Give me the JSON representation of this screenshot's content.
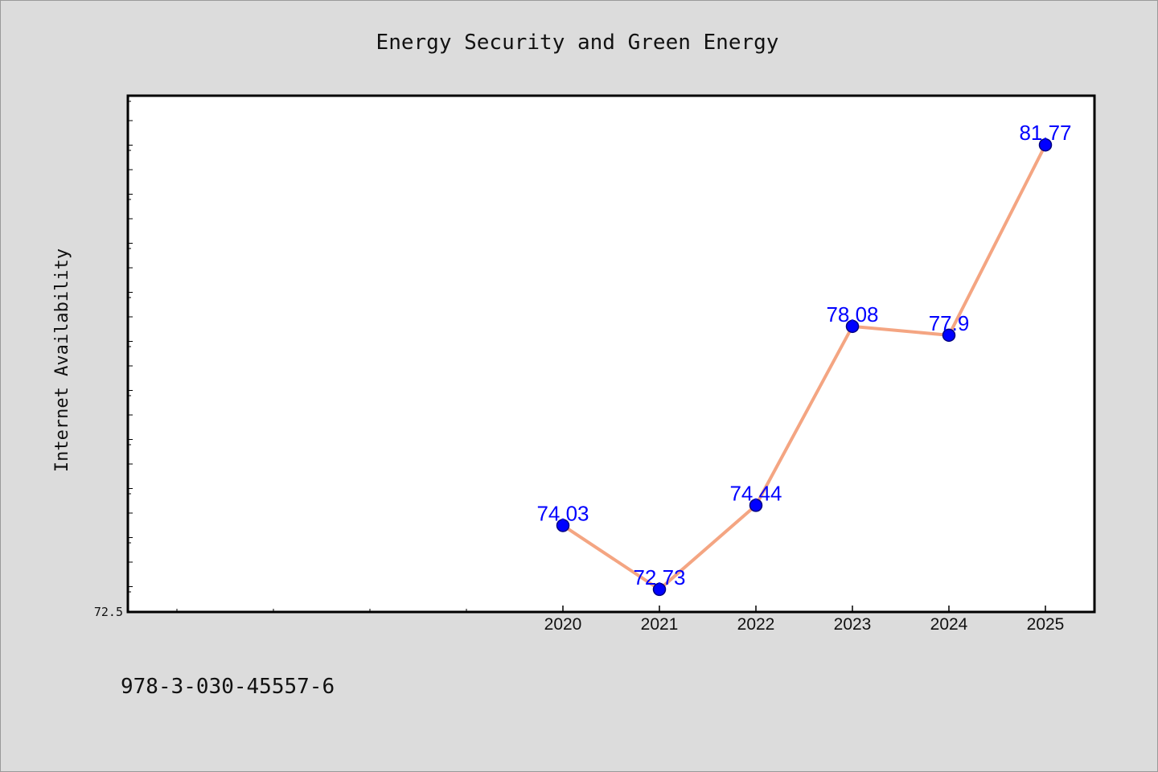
{
  "chart_data": {
    "type": "line",
    "title": "Energy Security and Green Energy",
    "xlabel": "",
    "ylabel": "Internet Availability",
    "categories": [
      "2020",
      "2021",
      "2022",
      "2023",
      "2024",
      "2025"
    ],
    "series": [
      {
        "values": [
          74.03,
          72.73,
          74.44,
          78.08,
          77.9,
          81.77
        ],
        "data_labels": [
          "74.03",
          "72.73",
          "74.44",
          "78.08",
          "77.9",
          "81.77"
        ]
      }
    ],
    "ylim": [
      72.5,
      83
    ],
    "yticks_labeled": [
      "72.5"
    ],
    "grid": false,
    "legend": "none",
    "colors": {
      "line": "#f4a582",
      "marker": "#0000ff",
      "marker_edge": "#000080",
      "data_label": "#0000ff",
      "plot_background": "#ffffff",
      "figure_background": "#dcdcdc"
    }
  },
  "footnote": "978-3-030-45557-6"
}
